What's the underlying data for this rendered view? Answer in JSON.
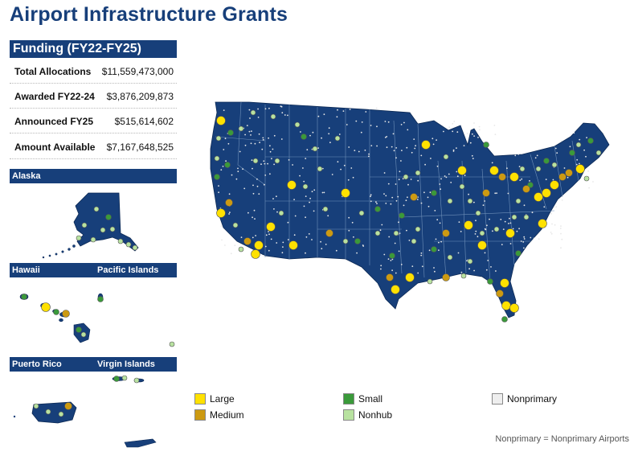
{
  "title": "Airport Infrastructure Grants",
  "funding": {
    "header": "Funding (FY22-FY25)",
    "rows": [
      {
        "label": "Total Allocations",
        "value": "$11,559,473,000"
      },
      {
        "label": "Awarded FY22-24",
        "value": "$3,876,209,873"
      },
      {
        "label": "Announced FY25",
        "value": "$515,614,602"
      },
      {
        "label": "Amount Available",
        "value": "$7,167,648,525"
      }
    ]
  },
  "regions": {
    "alaska": "Alaska",
    "hawaii": "Hawaii",
    "pacific": "Pacific Islands",
    "puerto_rico": "Puerto Rico",
    "virgin_islands": "Virgin Islands"
  },
  "legend": [
    {
      "label": "Large",
      "color": "#ffe100"
    },
    {
      "label": "Medium",
      "color": "#cc9a12"
    },
    {
      "label": "Small",
      "color": "#3a9a3a"
    },
    {
      "label": "Nonhub",
      "color": "#b8e2a0"
    },
    {
      "label": "Nonprimary",
      "color": "#eeeeee"
    }
  ],
  "note": "Nonprimary = Nonprimary Airports",
  "colors": {
    "land": "#173f7a",
    "border": "#6e8fb8"
  }
}
